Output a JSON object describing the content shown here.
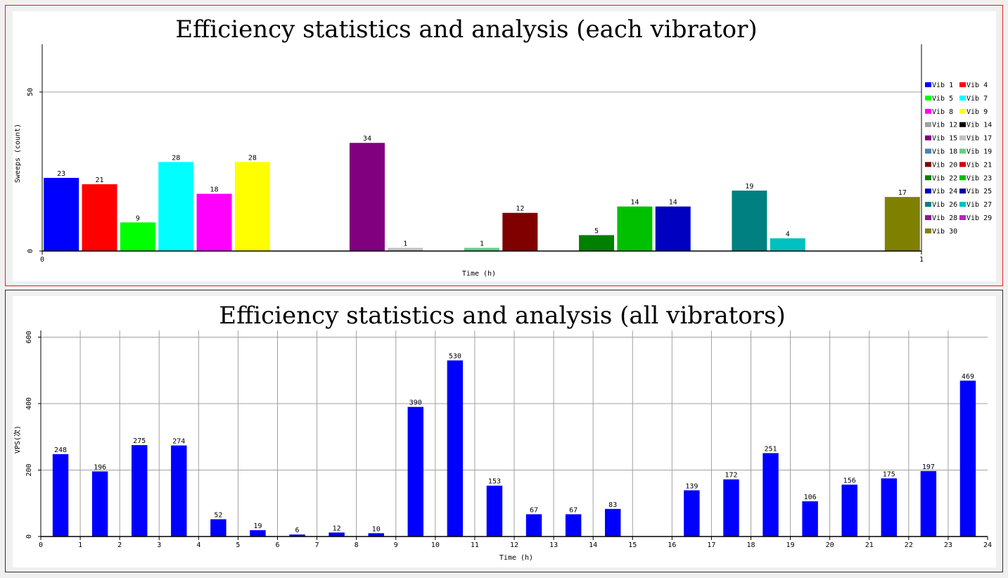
{
  "chart_data": [
    {
      "type": "bar",
      "title": "Efficiency statistics and analysis (each vibrator)",
      "xlabel": "Time (h)",
      "ylabel": "Sweeps (count)",
      "xlim": [
        0,
        1
      ],
      "x_ticks": [
        "0",
        "1"
      ],
      "ylim": [
        0,
        65
      ],
      "y_ticks": [
        0,
        50
      ],
      "grid": "horizontal",
      "legend_position": "right",
      "series": [
        {
          "name": "Vib 1",
          "value": 23,
          "color": "#0000ff"
        },
        {
          "name": "Vib 4",
          "value": 21,
          "color": "#ff0000"
        },
        {
          "name": "Vib 5",
          "value": 9,
          "color": "#00ff00"
        },
        {
          "name": "Vib 7",
          "value": 28,
          "color": "#00ffff"
        },
        {
          "name": "Vib 8",
          "value": 18,
          "color": "#ff00ff"
        },
        {
          "name": "Vib 9",
          "value": 28,
          "color": "#ffff00"
        },
        {
          "name": "Vib 12",
          "value": null,
          "color": "#a0a0a0"
        },
        {
          "name": "Vib 14",
          "value": null,
          "color": "#000000"
        },
        {
          "name": "Vib 15",
          "value": 34,
          "color": "#800080"
        },
        {
          "name": "Vib 17",
          "value": 1,
          "color": "#c0c0c0"
        },
        {
          "name": "Vib 18",
          "value": null,
          "color": "#4682b4"
        },
        {
          "name": "Vib 19",
          "value": 1,
          "color": "#66cc88"
        },
        {
          "name": "Vib 20",
          "value": 12,
          "color": "#800000"
        },
        {
          "name": "Vib 21",
          "value": null,
          "color": "#cc0000"
        },
        {
          "name": "Vib 22",
          "value": 5,
          "color": "#008000"
        },
        {
          "name": "Vib 23",
          "value": 14,
          "color": "#00c000"
        },
        {
          "name": "Vib 24",
          "value": 14,
          "color": "#0000c0"
        },
        {
          "name": "Vib 25",
          "value": null,
          "color": "#0000a0"
        },
        {
          "name": "Vib 26",
          "value": 19,
          "color": "#008080"
        },
        {
          "name": "Vib 27",
          "value": 4,
          "color": "#00c0c0"
        },
        {
          "name": "Vib 28",
          "value": null,
          "color": "#8b1a8b"
        },
        {
          "name": "Vib 29",
          "value": null,
          "color": "#c020c0"
        },
        {
          "name": "Vib 30",
          "value": 17,
          "color": "#808000"
        }
      ]
    },
    {
      "type": "bar",
      "title": "Efficiency statistics and analysis (all vibrators)",
      "xlabel": "Time (h)",
      "ylabel": "VPS(次)",
      "xlim": [
        0,
        24
      ],
      "ylim": [
        0,
        620
      ],
      "y_ticks": [
        0,
        200,
        400,
        600
      ],
      "grid": "both",
      "bar_color": "#0000ff",
      "x_ticks": [
        "0",
        "1",
        "2",
        "3",
        "4",
        "5",
        "6",
        "7",
        "8",
        "9",
        "10",
        "11",
        "12",
        "13",
        "14",
        "15",
        "16",
        "17",
        "18",
        "19",
        "20",
        "21",
        "22",
        "23",
        "24"
      ],
      "x": [
        0.5,
        1.5,
        2.5,
        3.5,
        4.5,
        5.5,
        6.5,
        7.5,
        8.5,
        9.5,
        10.5,
        11.5,
        12.5,
        13.5,
        14.5,
        16.5,
        17.5,
        18.5,
        19.5,
        20.5,
        21.5,
        22.5,
        23.5
      ],
      "values": [
        248,
        196,
        275,
        274,
        52,
        19,
        6,
        12,
        10,
        390,
        530,
        153,
        67,
        67,
        83,
        139,
        172,
        251,
        106,
        156,
        175,
        197,
        469
      ]
    }
  ]
}
